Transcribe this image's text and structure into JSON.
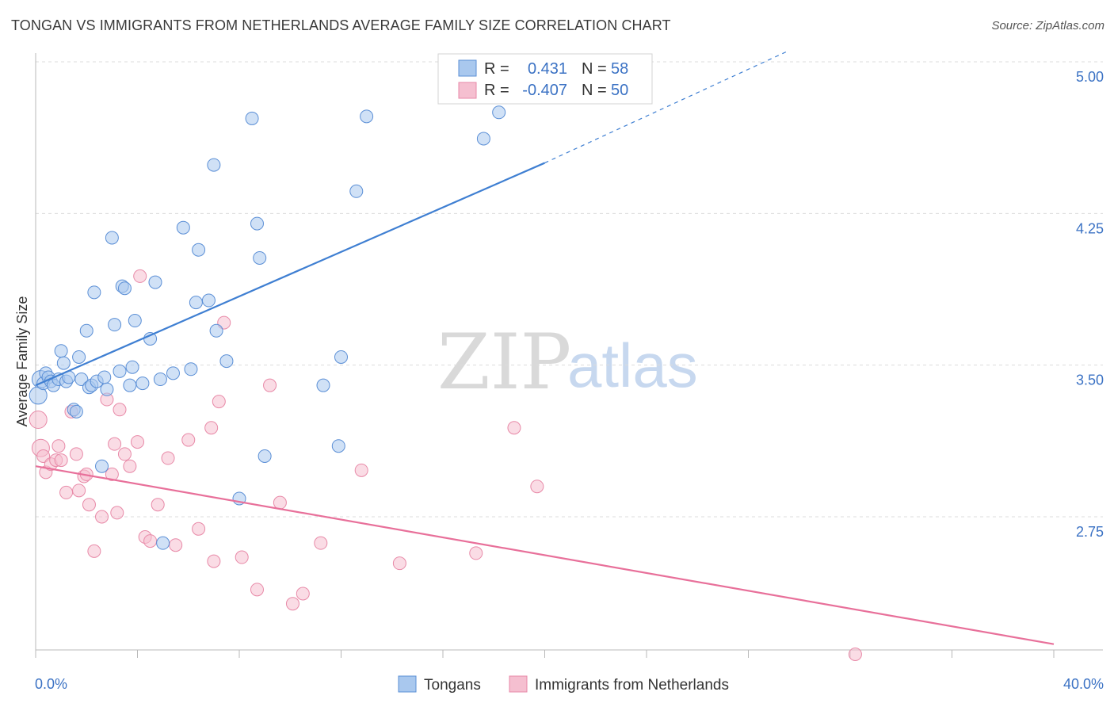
{
  "title": "TONGAN VS IMMIGRANTS FROM NETHERLANDS AVERAGE FAMILY SIZE CORRELATION CHART",
  "source": "Source: ZipAtlas.com",
  "watermark": {
    "part1": "ZIP",
    "part2": "atlas"
  },
  "legend_top": [
    {
      "r_label": "R =",
      "r_value": "0.431",
      "n_label": "N =",
      "n_value": "58"
    },
    {
      "r_label": "R =",
      "r_value": "-0.407",
      "n_label": "N =",
      "n_value": "50"
    }
  ],
  "legend_bottom": [
    "Tongans",
    "Immigrants from Netherlands"
  ],
  "colors": {
    "blue_fill": "#a9c8ee",
    "blue_stroke": "#5b8fd6",
    "blue_line": "#3f7fd2",
    "pink_fill": "#f5bfd0",
    "pink_stroke": "#e88aa8",
    "pink_line": "#e8709a",
    "tick_text": "#3b72c4"
  },
  "chart_data": {
    "type": "scatter",
    "title": "TONGAN VS IMMIGRANTS FROM NETHERLANDS AVERAGE FAMILY SIZE CORRELATION CHART",
    "xlabel": "",
    "ylabel": "Average Family Size",
    "xlim": [
      0,
      40
    ],
    "ylim": [
      2.05,
      5.1
    ],
    "x_tick_labels": [
      "0.0%",
      "40.0%"
    ],
    "y_ticks": [
      2.75,
      3.5,
      4.25,
      5.0
    ],
    "y_tick_labels": [
      "2.75",
      "3.50",
      "4.25",
      "5.00"
    ],
    "grid": true,
    "legend_position": "top-center",
    "series": [
      {
        "name": "Tongans",
        "color": "blue",
        "r": 0.431,
        "n": 58,
        "trend": {
          "x": [
            0,
            20
          ],
          "y": [
            3.4,
            4.5
          ],
          "dashed_extension_to": [
            29.5,
            5.05
          ]
        },
        "points": [
          [
            0.1,
            3.35
          ],
          [
            0.2,
            3.43
          ],
          [
            0.3,
            3.41
          ],
          [
            0.4,
            3.46
          ],
          [
            0.5,
            3.44
          ],
          [
            0.6,
            3.42
          ],
          [
            0.7,
            3.4
          ],
          [
            0.9,
            3.43
          ],
          [
            1.0,
            3.57
          ],
          [
            1.1,
            3.51
          ],
          [
            1.2,
            3.42
          ],
          [
            1.3,
            3.44
          ],
          [
            1.5,
            3.28
          ],
          [
            1.6,
            3.27
          ],
          [
            1.7,
            3.54
          ],
          [
            1.8,
            3.43
          ],
          [
            2.0,
            3.67
          ],
          [
            2.1,
            3.39
          ],
          [
            2.2,
            3.4
          ],
          [
            2.3,
            3.86
          ],
          [
            2.4,
            3.42
          ],
          [
            2.6,
            3.0
          ],
          [
            2.7,
            3.44
          ],
          [
            2.8,
            3.38
          ],
          [
            3.0,
            4.13
          ],
          [
            3.1,
            3.7
          ],
          [
            3.3,
            3.47
          ],
          [
            3.4,
            3.89
          ],
          [
            3.5,
            3.88
          ],
          [
            3.7,
            3.4
          ],
          [
            3.8,
            3.49
          ],
          [
            3.9,
            3.72
          ],
          [
            4.2,
            3.41
          ],
          [
            4.5,
            3.63
          ],
          [
            4.7,
            3.91
          ],
          [
            4.9,
            3.43
          ],
          [
            5.0,
            2.62
          ],
          [
            5.4,
            3.46
          ],
          [
            5.8,
            4.18
          ],
          [
            6.1,
            3.48
          ],
          [
            6.3,
            3.81
          ],
          [
            6.4,
            4.07
          ],
          [
            6.8,
            3.82
          ],
          [
            7.0,
            4.49
          ],
          [
            7.1,
            3.67
          ],
          [
            7.5,
            3.52
          ],
          [
            8.0,
            2.84
          ],
          [
            8.5,
            4.72
          ],
          [
            8.7,
            4.2
          ],
          [
            8.8,
            4.03
          ],
          [
            9.0,
            3.05
          ],
          [
            11.3,
            3.4
          ],
          [
            11.9,
            3.1
          ],
          [
            12.0,
            3.54
          ],
          [
            12.6,
            4.36
          ],
          [
            13.0,
            4.73
          ],
          [
            17.6,
            4.62
          ],
          [
            18.2,
            4.75
          ]
        ]
      },
      {
        "name": "Immigrants from Netherlands",
        "color": "pink",
        "r": -0.407,
        "n": 50,
        "trend": {
          "x": [
            0,
            40
          ],
          "y": [
            3.0,
            2.12
          ]
        },
        "points": [
          [
            0.1,
            3.23
          ],
          [
            0.2,
            3.09
          ],
          [
            0.3,
            3.05
          ],
          [
            0.4,
            2.97
          ],
          [
            0.6,
            3.01
          ],
          [
            0.8,
            3.03
          ],
          [
            0.9,
            3.1
          ],
          [
            1.0,
            3.03
          ],
          [
            1.2,
            2.87
          ],
          [
            1.4,
            3.27
          ],
          [
            1.6,
            3.06
          ],
          [
            1.7,
            2.88
          ],
          [
            1.9,
            2.95
          ],
          [
            2.0,
            2.96
          ],
          [
            2.1,
            2.81
          ],
          [
            2.3,
            2.58
          ],
          [
            2.6,
            2.75
          ],
          [
            2.8,
            3.33
          ],
          [
            3.0,
            2.96
          ],
          [
            3.1,
            3.11
          ],
          [
            3.2,
            2.77
          ],
          [
            3.3,
            3.28
          ],
          [
            3.5,
            3.06
          ],
          [
            3.7,
            3.0
          ],
          [
            4.0,
            3.12
          ],
          [
            4.1,
            3.94
          ],
          [
            4.3,
            2.65
          ],
          [
            4.5,
            2.63
          ],
          [
            4.8,
            2.81
          ],
          [
            5.2,
            3.04
          ],
          [
            5.5,
            2.61
          ],
          [
            6.0,
            3.13
          ],
          [
            6.4,
            2.69
          ],
          [
            6.9,
            3.19
          ],
          [
            7.0,
            2.53
          ],
          [
            7.2,
            3.32
          ],
          [
            7.4,
            3.71
          ],
          [
            8.1,
            2.55
          ],
          [
            8.7,
            2.39
          ],
          [
            9.2,
            3.4
          ],
          [
            9.6,
            2.82
          ],
          [
            10.1,
            2.32
          ],
          [
            10.5,
            2.37
          ],
          [
            11.2,
            2.62
          ],
          [
            12.8,
            2.98
          ],
          [
            14.3,
            2.52
          ],
          [
            17.3,
            2.57
          ],
          [
            18.8,
            3.19
          ],
          [
            19.7,
            2.9
          ],
          [
            32.2,
            2.07
          ]
        ]
      }
    ]
  }
}
